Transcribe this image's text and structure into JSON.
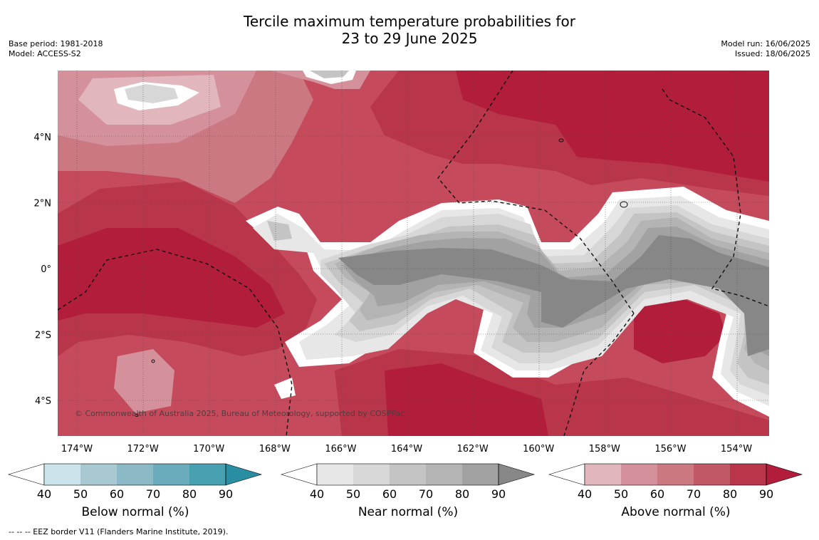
{
  "header": {
    "title_line1": "Tercile maximum temperature probabilities for",
    "title_line2": "23 to 29 June 2025",
    "base_period": "Base period: 1981-2018",
    "model": "Model: ACCESS-S2",
    "model_run": "Model run: 16/06/2025",
    "issued": "Issued: 18/06/2025"
  },
  "map": {
    "copyright": "© Commonwealth of Australia 2025, Bureau of Meteorology, supported by COSPPac",
    "lat_ticks": [
      {
        "label": "4°N",
        "lat": 4
      },
      {
        "label": "2°N",
        "lat": 2
      },
      {
        "label": "0°",
        "lat": 0
      },
      {
        "label": "2°S",
        "lat": -2
      },
      {
        "label": "4°S",
        "lat": -4
      }
    ],
    "lon_ticks": [
      {
        "label": "174°W",
        "lon": -174
      },
      {
        "label": "172°W",
        "lon": -172
      },
      {
        "label": "170°W",
        "lon": -170
      },
      {
        "label": "168°W",
        "lon": -168
      },
      {
        "label": "166°W",
        "lon": -166
      },
      {
        "label": "164°W",
        "lon": -164
      },
      {
        "label": "162°W",
        "lon": -162
      },
      {
        "label": "160°W",
        "lon": -160
      },
      {
        "label": "158°W",
        "lon": -158
      },
      {
        "label": "156°W",
        "lon": -156
      },
      {
        "label": "154°W",
        "lon": -154
      }
    ]
  },
  "colorbars": [
    {
      "label": "Below normal (%)",
      "ticks": [
        "40",
        "50",
        "60",
        "70",
        "80",
        "90"
      ],
      "colors": [
        "#ffffff",
        "#cbe3ea",
        "#a8c9d0",
        "#8bbac6",
        "#6aacbb",
        "#46a0b0",
        "#2a8ea3"
      ]
    },
    {
      "label": "Near normal (%)",
      "ticks": [
        "40",
        "50",
        "60",
        "70",
        "80",
        "90"
      ],
      "colors": [
        "#ffffff",
        "#e7e7e7",
        "#d7d7d7",
        "#c4c4c4",
        "#b4b4b4",
        "#a2a2a2",
        "#878787"
      ]
    },
    {
      "label": "Above normal (%)",
      "ticks": [
        "40",
        "50",
        "60",
        "70",
        "80",
        "90"
      ],
      "colors": [
        "#ffffff",
        "#e1b7bd",
        "#d5919b",
        "#cb7883",
        "#c15866",
        "#b8354a",
        "#b11d3b"
      ]
    }
  ],
  "footnote": "--  --  -- EEZ border V11 (Flanders Marine Institute, 2019)."
}
